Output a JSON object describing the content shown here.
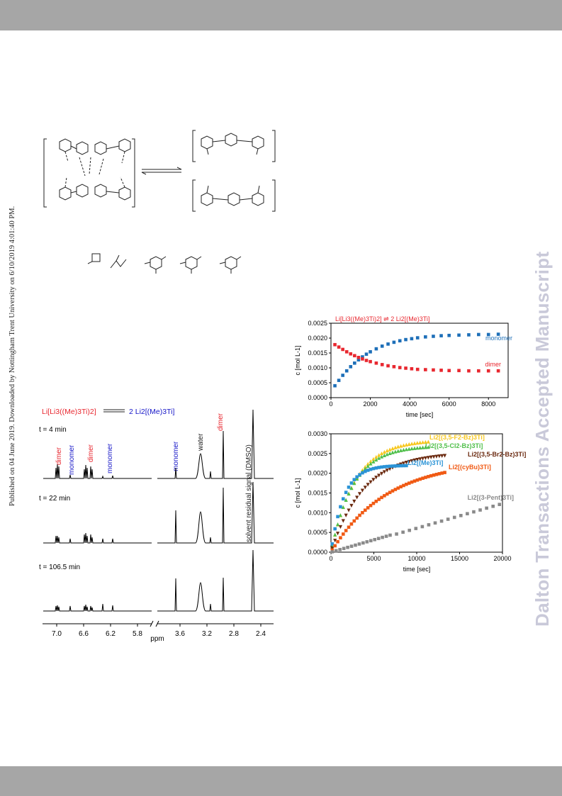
{
  "side_text_left": "Published on 04 June 2019. Downloaded by Nottingham Trent University on 6/10/2019 4:01:40 PM.",
  "side_text_right": "Dalton Transactions Accepted Manuscript",
  "colors": {
    "red": "#e8272f",
    "blue": "#1e6fb8",
    "dark_blue": "#1717c8",
    "band": "#a6a6a6"
  },
  "nmr": {
    "equation": {
      "left": "Li[Li3((Me)3Ti)2]",
      "right": "2 Li2[(Me)3Ti]"
    },
    "spectra_labels": [
      "t = 4 min",
      "t = 22 min",
      "t = 106.5 min"
    ],
    "peak_labels": [
      "dimer",
      "monomer",
      "dimer",
      "monomer",
      "monomer",
      "water",
      "dimer",
      "solvent residual signal (DMSO)"
    ],
    "axis_label": "ppm",
    "x_ticks_left": [
      "7.0",
      "6.6",
      "6.2",
      "5.8"
    ],
    "x_ticks_right": [
      "3.6",
      "3.2",
      "2.8",
      "2.4"
    ]
  },
  "chart_data": [
    {
      "type": "scatter",
      "title": "Li[Li3((Me)3Ti)2] ⇌ 2 Li2[(Me)3Ti]",
      "xlabel": "time [sec]",
      "ylabel": "c [mol L-1]",
      "xlim": [
        0,
        9000
      ],
      "ylim": [
        0,
        0.0025
      ],
      "x_ticks": [
        0,
        2000,
        4000,
        6000,
        8000
      ],
      "y_ticks": [
        "0.0000",
        "0.0005",
        "0.0010",
        "0.0015",
        "0.0020",
        "0.0025"
      ],
      "series": [
        {
          "name": "monomer",
          "color": "#1e6fb8",
          "x": [
            200,
            400,
            600,
            800,
            1000,
            1200,
            1400,
            1600,
            1800,
            2000,
            2300,
            2600,
            2900,
            3200,
            3500,
            3800,
            4100,
            4400,
            4800,
            5200,
            5600,
            6000,
            6500,
            7000,
            7500,
            8000,
            8500
          ],
          "y": [
            0.0004,
            0.00058,
            0.00075,
            0.0009,
            0.00104,
            0.00116,
            0.00127,
            0.00137,
            0.00146,
            0.00154,
            0.00164,
            0.00173,
            0.0018,
            0.00186,
            0.00191,
            0.00195,
            0.00198,
            0.00201,
            0.00204,
            0.00206,
            0.00208,
            0.00209,
            0.0021,
            0.00211,
            0.00212,
            0.00212,
            0.00213
          ]
        },
        {
          "name": "dimer",
          "color": "#e8272f",
          "x": [
            200,
            400,
            600,
            800,
            1000,
            1200,
            1400,
            1600,
            1800,
            2000,
            2300,
            2600,
            2900,
            3200,
            3500,
            3800,
            4100,
            4400,
            4800,
            5200,
            5600,
            6000,
            6500,
            7000,
            7500,
            8000,
            8500
          ],
          "y": [
            0.00178,
            0.0017,
            0.00162,
            0.00154,
            0.00147,
            0.00141,
            0.00135,
            0.0013,
            0.00125,
            0.00121,
            0.00116,
            0.00111,
            0.00107,
            0.00104,
            0.00101,
            0.00099,
            0.00097,
            0.00095,
            0.00094,
            0.00093,
            0.00092,
            0.00091,
            0.00091,
            0.0009,
            0.0009,
            0.0009,
            0.0009
          ]
        }
      ]
    },
    {
      "type": "scatter",
      "xlabel": "time [sec]",
      "ylabel": "c [mol L-1]",
      "xlim": [
        0,
        20000
      ],
      "ylim": [
        0,
        0.003
      ],
      "x_ticks": [
        0,
        5000,
        10000,
        15000,
        20000
      ],
      "y_ticks": [
        "0.0000",
        "0.0005",
        "0.0010",
        "0.0015",
        "0.0020",
        "0.0025",
        "0.0030"
      ],
      "series": [
        {
          "name": "Li2[(3,5-F2-Bz)3Ti]",
          "color": "#f7c71e",
          "marker": "triangle-up",
          "plateau": 0.00285,
          "tau": 2800,
          "t_end": 11500
        },
        {
          "name": "Li2[(3,5-Cl2-Bz)3Ti]",
          "color": "#4fbf4a",
          "marker": "triangle-up",
          "plateau": 0.0027,
          "tau": 2600,
          "t_end": 11500
        },
        {
          "name": "Li2[(3,5-Br2-Bz)3Ti]",
          "color": "#6b2a10",
          "marker": "triangle-down",
          "plateau": 0.00252,
          "tau": 3800,
          "t_end": 13500
        },
        {
          "name": "Li2[(Me)3Ti]",
          "color": "#2a93d6",
          "marker": "square",
          "plateau": 0.0022,
          "tau": 1500,
          "t_end": 8800
        },
        {
          "name": "Li2[(cyBu)3Ti]",
          "color": "#f05a14",
          "marker": "square",
          "plateau": 0.00232,
          "tau": 6500,
          "t_end": 13500
        },
        {
          "name": "Li2[(3-Pent)3Ti]",
          "color": "#8a8a8a",
          "marker": "square",
          "slope": 6.25e-08,
          "t_end": 20000
        }
      ]
    }
  ]
}
